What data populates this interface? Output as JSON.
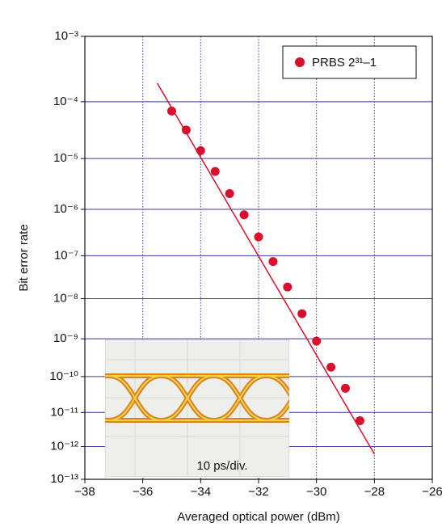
{
  "chart_data": {
    "type": "scatter",
    "y_label": "Bit error rate",
    "x_label": "Averaged optical power (dBm)",
    "annotation": "10 ps/div.",
    "yscale": "q",
    "grid": true,
    "legend": "top-right",
    "xlim": [
      -38,
      -26
    ],
    "xticks": [
      {
        "value": -38,
        "label": "−38"
      },
      {
        "value": -36,
        "label": "−36"
      },
      {
        "value": -34,
        "label": "−34"
      },
      {
        "value": -32,
        "label": "−32"
      },
      {
        "value": -30,
        "label": "−30"
      },
      {
        "value": -28,
        "label": "−28"
      },
      {
        "value": -26,
        "label": "−26"
      }
    ],
    "ylim": [
      0.001,
      1e-13
    ],
    "yticks": [
      {
        "value": 0.001,
        "label": "10⁻³"
      },
      {
        "value": 0.0001,
        "label": "10⁻⁴"
      },
      {
        "value": 1e-05,
        "label": "10⁻⁵"
      },
      {
        "value": 1e-06,
        "label": "10⁻⁶"
      },
      {
        "value": 1e-07,
        "label": "10⁻⁷"
      },
      {
        "value": 1e-08,
        "label": "10⁻⁸"
      },
      {
        "value": 1e-09,
        "label": "10⁻⁹"
      },
      {
        "value": 1e-10,
        "label": "10⁻¹⁰"
      },
      {
        "value": 1e-11,
        "label": "10⁻¹¹"
      },
      {
        "value": 1e-12,
        "label": "10⁻¹²"
      },
      {
        "value": 1e-13,
        "label": "10⁻¹³"
      }
    ],
    "series": [
      {
        "name": "PRBS 2³¹–1",
        "color": "#d8102c",
        "x": [
          -35,
          -34.5,
          -34,
          -33.5,
          -33,
          -32.5,
          -32,
          -31.5,
          -31,
          -30.5,
          -30,
          -29.5,
          -29,
          -28.5
        ],
        "values": [
          7e-05,
          3.3e-05,
          1.4e-05,
          5.7e-06,
          2.1e-06,
          7.7e-07,
          2.6e-07,
          7.4e-08,
          1.9e-08,
          4.3e-09,
          8.7e-10,
          1.8e-10,
          4.8e-11,
          5.8e-12
        ]
      }
    ],
    "fit": {
      "color": "#d8102c",
      "x": [
        -35.5,
        -28
      ],
      "values": [
        0.0002,
        6e-13
      ]
    }
  }
}
